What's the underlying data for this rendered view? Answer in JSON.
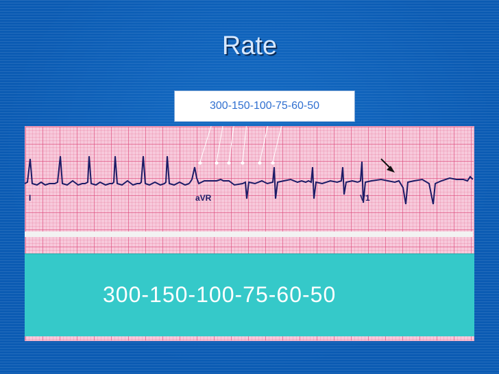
{
  "slide": {
    "title": "Rate",
    "callout_label": "300-150-100-75-60-50",
    "banner_text": "300-150-100-75-60-50"
  },
  "ecg_strip": {
    "leads": [
      "I",
      "aVR",
      "V1"
    ],
    "colors": {
      "paper": "#f7c9db",
      "grid": "#dc4678",
      "trace": "#1b1b66",
      "banner": "#35c9c9"
    }
  }
}
